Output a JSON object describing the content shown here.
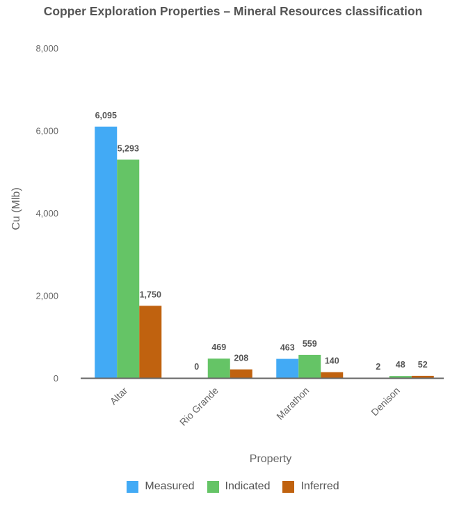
{
  "chart_data": {
    "type": "bar",
    "title": "Copper Exploration Properties – Mineral Resources classification",
    "xlabel": "Property",
    "ylabel": "Cu (Mlb)",
    "ylim": [
      0,
      8000
    ],
    "yticks": [
      "0",
      "2,000",
      "4,000",
      "6,000",
      "8,000"
    ],
    "ytick_values": [
      0,
      2000,
      4000,
      6000,
      8000
    ],
    "categories": [
      "Altar",
      "Rio Grande",
      "Marathon",
      "Denison"
    ],
    "series": [
      {
        "name": "Measured",
        "color": "#42aaf5",
        "values": [
          6095,
          0,
          463,
          2
        ],
        "labels": [
          "6,095",
          "0",
          "463",
          "2"
        ]
      },
      {
        "name": "Indicated",
        "color": "#65c466",
        "values": [
          5293,
          469,
          559,
          48
        ],
        "labels": [
          "5,293",
          "469",
          "559",
          "48"
        ]
      },
      {
        "name": "Inferred",
        "color": "#c0620f",
        "values": [
          1750,
          208,
          140,
          52
        ],
        "labels": [
          "1,750",
          "208",
          "140",
          "52"
        ]
      }
    ],
    "legend_position": "bottom"
  }
}
